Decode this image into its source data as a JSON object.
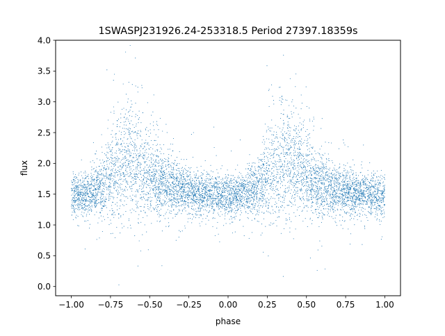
{
  "chart_data": {
    "type": "scatter",
    "title": "1SWASPJ231926.24-253318.5 Period 27397.18359s",
    "xlabel": "phase",
    "ylabel": "flux",
    "xlim": [
      -1.1,
      1.1
    ],
    "ylim": [
      -0.15,
      4.0
    ],
    "xticks": [
      -1.0,
      -0.75,
      -0.5,
      -0.25,
      0.0,
      0.25,
      0.5,
      0.75,
      1.0
    ],
    "xtick_labels": [
      "−1.00",
      "−0.75",
      "−0.50",
      "−0.25",
      "0.00",
      "0.25",
      "0.50",
      "0.75",
      "1.00"
    ],
    "yticks": [
      0.0,
      0.5,
      1.0,
      1.5,
      2.0,
      2.5,
      3.0,
      3.5,
      4.0
    ],
    "ytick_labels": [
      "0.0",
      "0.5",
      "1.0",
      "1.5",
      "2.0",
      "2.5",
      "3.0",
      "3.5",
      "4.0"
    ],
    "grid": false,
    "legend": "none",
    "marker_color": "#1f77b4",
    "series": [
      {
        "points": [
          [
            -1.0,
            1.48
          ],
          [
            -0.95,
            1.5
          ],
          [
            -0.9,
            1.5
          ],
          [
            -0.85,
            1.55
          ],
          [
            -0.8,
            1.62
          ],
          [
            -0.75,
            1.8
          ],
          [
            -0.7,
            1.95
          ],
          [
            -0.65,
            2.0
          ],
          [
            -0.6,
            1.98
          ],
          [
            -0.55,
            1.88
          ],
          [
            -0.5,
            1.78
          ],
          [
            -0.45,
            1.7
          ],
          [
            -0.4,
            1.65
          ],
          [
            -0.35,
            1.6
          ],
          [
            -0.3,
            1.57
          ],
          [
            -0.25,
            1.55
          ],
          [
            -0.2,
            1.52
          ],
          [
            -0.15,
            1.5
          ],
          [
            -0.1,
            1.5
          ],
          [
            -0.05,
            1.48
          ],
          [
            0.0,
            1.47
          ],
          [
            0.05,
            1.49
          ],
          [
            0.1,
            1.52
          ],
          [
            0.15,
            1.55
          ],
          [
            0.2,
            1.62
          ],
          [
            0.25,
            1.8
          ],
          [
            0.3,
            1.95
          ],
          [
            0.35,
            2.0
          ],
          [
            0.4,
            1.98
          ],
          [
            0.45,
            1.88
          ],
          [
            0.5,
            1.78
          ],
          [
            0.55,
            1.7
          ],
          [
            0.6,
            1.65
          ],
          [
            0.65,
            1.6
          ],
          [
            0.7,
            1.57
          ],
          [
            0.75,
            1.55
          ],
          [
            0.8,
            1.52
          ],
          [
            0.85,
            1.5
          ],
          [
            0.9,
            1.5
          ],
          [
            0.95,
            1.48
          ],
          [
            1.0,
            1.47
          ]
        ]
      }
    ]
  }
}
